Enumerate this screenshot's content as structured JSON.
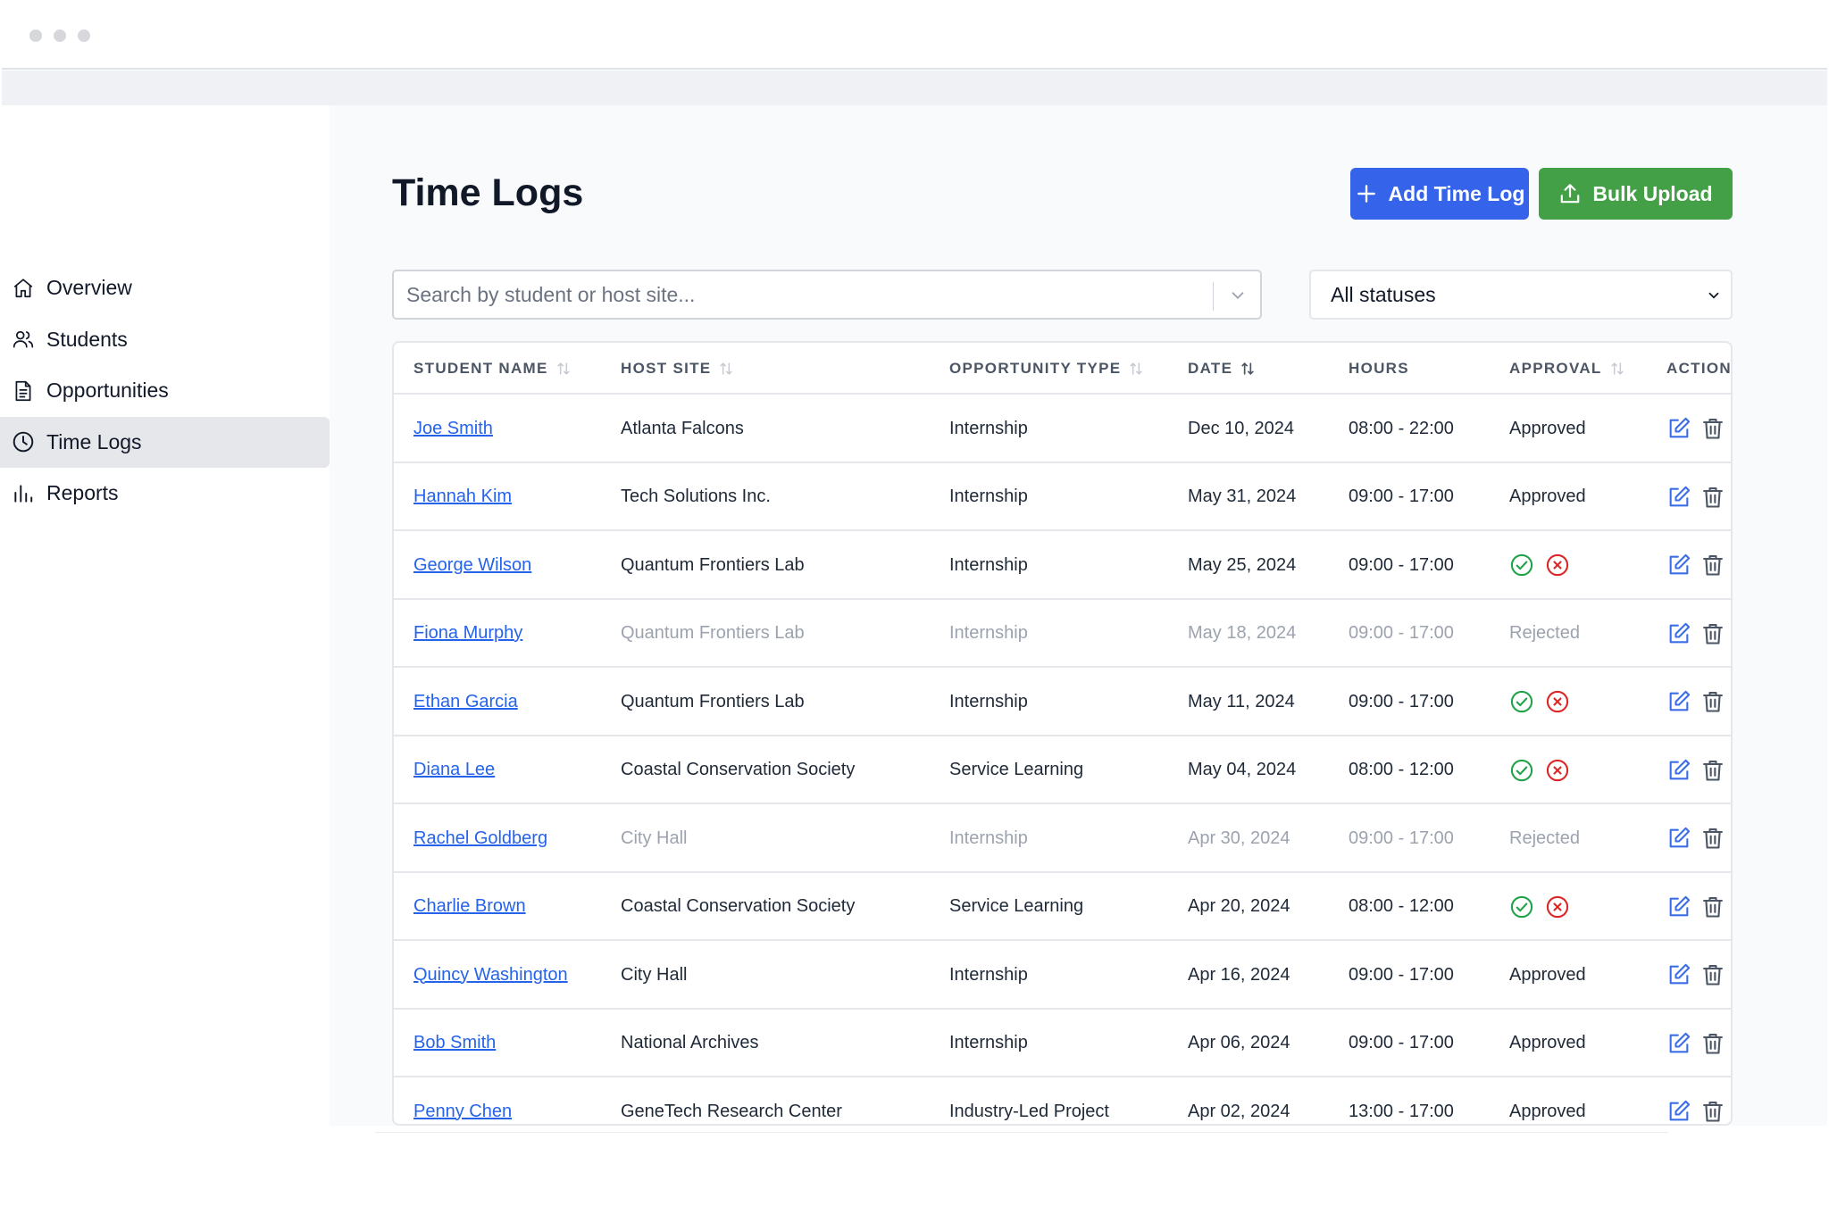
{
  "nav": {
    "items": [
      {
        "label": "Overview",
        "icon": "home-icon"
      },
      {
        "label": "Students",
        "icon": "users-icon"
      },
      {
        "label": "Opportunities",
        "icon": "document-icon"
      },
      {
        "label": "Time Logs",
        "icon": "clock-icon",
        "active": true
      },
      {
        "label": "Reports",
        "icon": "bar-chart-icon"
      }
    ]
  },
  "page": {
    "title": "Time Logs",
    "add_button": "Add Time Log",
    "bulk_button": "Bulk Upload"
  },
  "filters": {
    "search_placeholder": "Search by student or host site...",
    "status_selected": "All statuses"
  },
  "table": {
    "headers": {
      "name": "STUDENT NAME",
      "host": "HOST SITE",
      "type": "OPPORTUNITY TYPE",
      "date": "DATE",
      "hours": "HOURS",
      "approval": "APPROVAL",
      "actions": "ACTIONS"
    },
    "rows": [
      {
        "name": "Joe Smith",
        "host": "Atlanta Falcons",
        "type": "Internship",
        "date": "Dec 10, 2024",
        "hours": "08:00 - 22:00",
        "approval": "Approved"
      },
      {
        "name": "Hannah Kim",
        "host": "Tech Solutions Inc.",
        "type": "Internship",
        "date": "May 31, 2024",
        "hours": "09:00 - 17:00",
        "approval": "Approved"
      },
      {
        "name": "George Wilson",
        "host": "Quantum Frontiers Lab",
        "type": "Internship",
        "date": "May 25, 2024",
        "hours": "09:00 - 17:00",
        "approval": ""
      },
      {
        "name": "Fiona Murphy",
        "host": "Quantum Frontiers Lab",
        "type": "Internship",
        "date": "May 18, 2024",
        "hours": "09:00 - 17:00",
        "approval": "Rejected"
      },
      {
        "name": "Ethan Garcia",
        "host": "Quantum Frontiers Lab",
        "type": "Internship",
        "date": "May 11, 2024",
        "hours": "09:00 - 17:00",
        "approval": ""
      },
      {
        "name": "Diana Lee",
        "host": "Coastal Conservation Society",
        "type": "Service Learning",
        "date": "May 04, 2024",
        "hours": "08:00 - 12:00",
        "approval": ""
      },
      {
        "name": "Rachel Goldberg",
        "host": "City Hall",
        "type": "Internship",
        "date": "Apr 30, 2024",
        "hours": "09:00 - 17:00",
        "approval": "Rejected"
      },
      {
        "name": "Charlie Brown",
        "host": "Coastal Conservation Society",
        "type": "Service Learning",
        "date": "Apr 20, 2024",
        "hours": "08:00 - 12:00",
        "approval": ""
      },
      {
        "name": "Quincy Washington",
        "host": "City Hall",
        "type": "Internship",
        "date": "Apr 16, 2024",
        "hours": "09:00 - 17:00",
        "approval": "Approved"
      },
      {
        "name": "Bob Smith",
        "host": "National Archives",
        "type": "Internship",
        "date": "Apr 06, 2024",
        "hours": "09:00 - 17:00",
        "approval": "Approved"
      },
      {
        "name": "Penny Chen",
        "host": "GeneTech Research Center",
        "type": "Industry-Led Project",
        "date": "Apr 02, 2024",
        "hours": "13:00 - 17:00",
        "approval": "Approved"
      }
    ]
  },
  "colors": {
    "primary": "#3563e9",
    "success": "#43a047",
    "link": "#2563eb",
    "reject": "#dc2626",
    "approve": "#22a34a",
    "action_edit": "#3b6ee6",
    "action_delete": "#4b5563"
  }
}
